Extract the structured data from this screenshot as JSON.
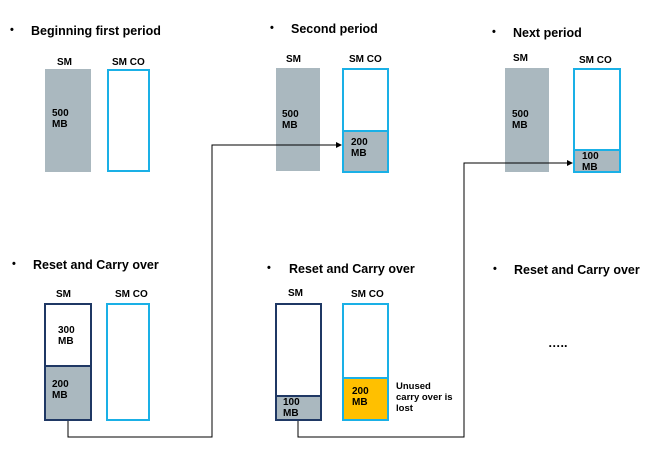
{
  "panels": {
    "p1": {
      "heading": "Beginning first period",
      "sm_label": "SM",
      "smco_label": "SM CO",
      "sm_value": "500 MB"
    },
    "p2": {
      "heading": "Second period",
      "sm_label": "SM",
      "smco_label": "SM CO",
      "sm_value": "500 MB",
      "smco_value": "200 MB"
    },
    "p3": {
      "heading": "Next period",
      "sm_label": "SM",
      "smco_label": "SM CO",
      "sm_value": "500 MB",
      "smco_value": "100 MB"
    },
    "p4": {
      "heading": "Reset and Carry over",
      "sm_label": "SM",
      "smco_label": "SM CO",
      "sm_top_value": "300 MB",
      "sm_bottom_value": "200 MB"
    },
    "p5": {
      "heading": "Reset and Carry over",
      "sm_label": "SM",
      "smco_label": "SM CO",
      "sm_value": "100 MB",
      "smco_value": "200 MB",
      "note": "Unused carry over is lost"
    },
    "p6": {
      "heading": "Reset and Carry over",
      "placeholder": "….."
    }
  },
  "bullet": "•",
  "colors": {
    "sm_fill": "#aab8bf",
    "sm_outline": "#1f3864",
    "smco_outline": "#1ab0e6",
    "lost_fill": "#ffc000",
    "connector": "#000000"
  }
}
